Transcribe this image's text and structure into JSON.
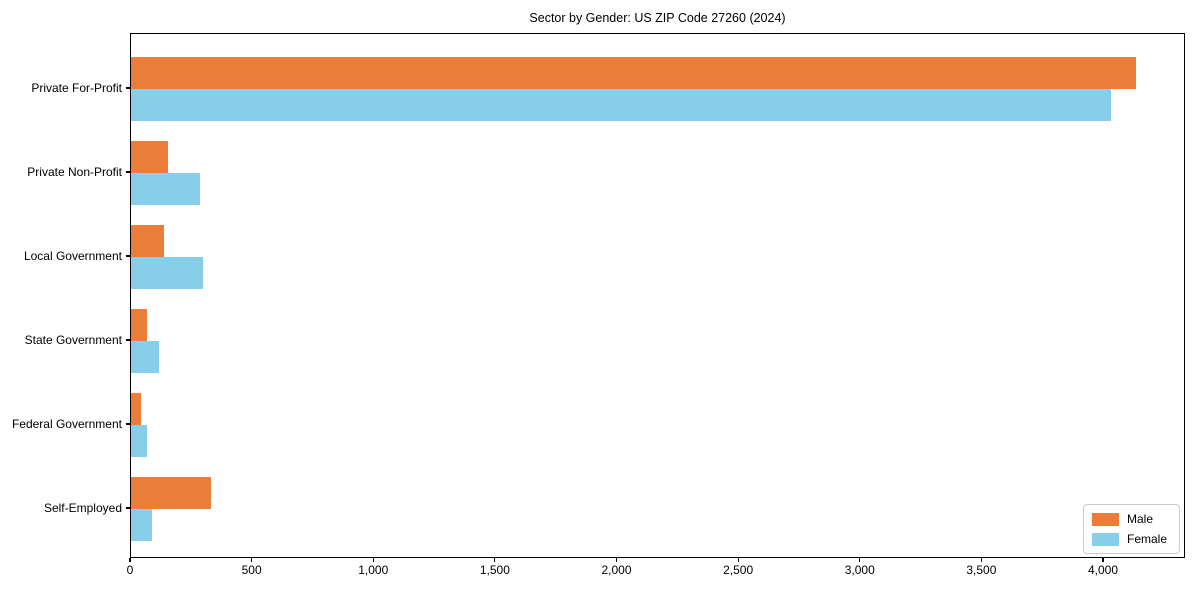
{
  "chart_data": {
    "type": "bar",
    "orientation": "horizontal",
    "title": "Sector by Gender: US ZIP Code 27260 (2024)",
    "categories": [
      "Private For-Profit",
      "Private Non-Profit",
      "Local Government",
      "State Government",
      "Federal Government",
      "Self-Employed"
    ],
    "series": [
      {
        "name": "Male",
        "color": "#EB7D3B",
        "values": [
          4130,
          150,
          137,
          65,
          40,
          330
        ]
      },
      {
        "name": "Female",
        "color": "#87CEEB",
        "values": [
          4030,
          284,
          295,
          116,
          65,
          88
        ]
      }
    ],
    "xlabel": "",
    "ylabel": "",
    "xlim": [
      0,
      4337
    ],
    "xticks": [
      0,
      500,
      1000,
      1500,
      2000,
      2500,
      3000,
      3500,
      4000
    ],
    "grid": false,
    "legend_position": "lower right",
    "background_color": "#ffffff",
    "spine_color": "#000000"
  }
}
